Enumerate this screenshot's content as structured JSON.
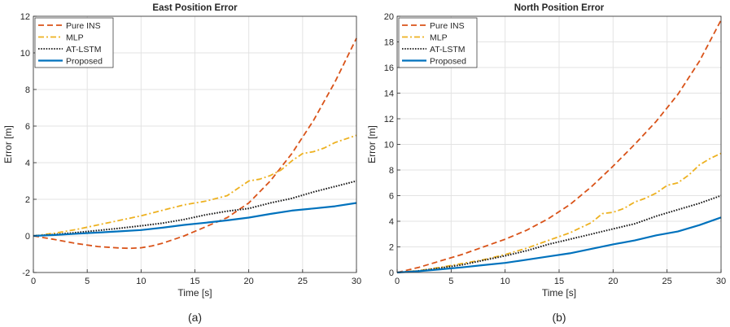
{
  "chart_data": [
    {
      "type": "line",
      "title": "East Position Error",
      "xlabel": "Time [s]",
      "ylabel": "Error [m]",
      "caption": "(a)",
      "xlim": [
        0,
        30
      ],
      "ylim": [
        -2,
        12
      ],
      "xticks": [
        0,
        5,
        10,
        15,
        20,
        25,
        30
      ],
      "yticks": [
        -2,
        0,
        2,
        4,
        6,
        8,
        10,
        12
      ],
      "grid": true,
      "legend_position": "top-left",
      "series": [
        {
          "name": "Pure INS",
          "style": "dashed",
          "color": "#d95319",
          "x": [
            0,
            2,
            4,
            6,
            8,
            9,
            10,
            11,
            12,
            14,
            16,
            18,
            20,
            22,
            24,
            26,
            28,
            30
          ],
          "y": [
            0,
            -0.2,
            -0.42,
            -0.58,
            -0.66,
            -0.68,
            -0.65,
            -0.55,
            -0.4,
            0.0,
            0.5,
            1.0,
            1.8,
            3.0,
            4.5,
            6.3,
            8.4,
            10.8
          ]
        },
        {
          "name": "MLP",
          "style": "dashdot",
          "color": "#edb120",
          "x": [
            0,
            2,
            4,
            6,
            8,
            10,
            12,
            14,
            16,
            18,
            19,
            20,
            21,
            22,
            23,
            24,
            25,
            26,
            27,
            28,
            29,
            30
          ],
          "y": [
            0,
            0.15,
            0.35,
            0.6,
            0.85,
            1.1,
            1.4,
            1.7,
            1.9,
            2.2,
            2.6,
            3.0,
            3.1,
            3.3,
            3.6,
            4.1,
            4.5,
            4.6,
            4.8,
            5.1,
            5.3,
            5.5
          ]
        },
        {
          "name": "AT-LSTM",
          "style": "dotted",
          "color": "#1a1a1a",
          "x": [
            0,
            2,
            4,
            6,
            8,
            10,
            12,
            14,
            16,
            18,
            20,
            22,
            24,
            26,
            28,
            30
          ],
          "y": [
            0,
            0.08,
            0.18,
            0.3,
            0.42,
            0.55,
            0.7,
            0.9,
            1.15,
            1.35,
            1.5,
            1.8,
            2.05,
            2.4,
            2.7,
            3.0
          ]
        },
        {
          "name": "Proposed",
          "style": "solid",
          "color": "#0072bd",
          "x": [
            0,
            2,
            4,
            6,
            8,
            10,
            12,
            14,
            16,
            18,
            20,
            22,
            24,
            26,
            28,
            30
          ],
          "y": [
            0,
            0.05,
            0.12,
            0.18,
            0.25,
            0.32,
            0.45,
            0.6,
            0.72,
            0.85,
            1.0,
            1.2,
            1.38,
            1.5,
            1.62,
            1.8
          ]
        }
      ]
    },
    {
      "type": "line",
      "title": "North Position Error",
      "xlabel": "Time [s]",
      "ylabel": "Error [m]",
      "caption": "(b)",
      "xlim": [
        0,
        30
      ],
      "ylim": [
        0,
        20
      ],
      "xticks": [
        0,
        5,
        10,
        15,
        20,
        25,
        30
      ],
      "yticks": [
        0,
        2,
        4,
        6,
        8,
        10,
        12,
        14,
        16,
        18,
        20
      ],
      "grid": true,
      "legend_position": "top-left",
      "series": [
        {
          "name": "Pure INS",
          "style": "dashed",
          "color": "#d95319",
          "x": [
            0,
            2,
            4,
            6,
            8,
            10,
            12,
            14,
            16,
            18,
            20,
            22,
            24,
            26,
            28,
            30
          ],
          "y": [
            0,
            0.4,
            0.9,
            1.4,
            2.0,
            2.6,
            3.3,
            4.2,
            5.3,
            6.7,
            8.3,
            10.0,
            11.8,
            13.9,
            16.5,
            19.7
          ]
        },
        {
          "name": "MLP",
          "style": "dashdot",
          "color": "#edb120",
          "x": [
            0,
            2,
            4,
            6,
            8,
            10,
            12,
            14,
            16,
            17,
            18,
            19,
            20,
            21,
            22,
            23,
            24,
            25,
            26,
            27,
            28,
            29,
            30
          ],
          "y": [
            0,
            0.15,
            0.4,
            0.7,
            1.0,
            1.4,
            1.9,
            2.5,
            3.1,
            3.5,
            3.9,
            4.6,
            4.7,
            5.0,
            5.5,
            5.8,
            6.2,
            6.8,
            7.0,
            7.6,
            8.4,
            8.9,
            9.3
          ]
        },
        {
          "name": "AT-LSTM",
          "style": "dotted",
          "color": "#1a1a1a",
          "x": [
            0,
            2,
            4,
            6,
            8,
            10,
            12,
            14,
            16,
            18,
            20,
            22,
            24,
            26,
            28,
            30
          ],
          "y": [
            0,
            0.12,
            0.35,
            0.6,
            0.95,
            1.3,
            1.7,
            2.2,
            2.6,
            3.0,
            3.4,
            3.8,
            4.4,
            4.9,
            5.4,
            6.0
          ]
        },
        {
          "name": "Proposed",
          "style": "solid",
          "color": "#0072bd",
          "x": [
            0,
            2,
            4,
            6,
            8,
            10,
            12,
            14,
            16,
            18,
            20,
            22,
            24,
            26,
            28,
            30
          ],
          "y": [
            0,
            0.1,
            0.25,
            0.4,
            0.58,
            0.75,
            1.0,
            1.25,
            1.5,
            1.85,
            2.2,
            2.5,
            2.9,
            3.2,
            3.7,
            4.3
          ]
        }
      ]
    }
  ]
}
